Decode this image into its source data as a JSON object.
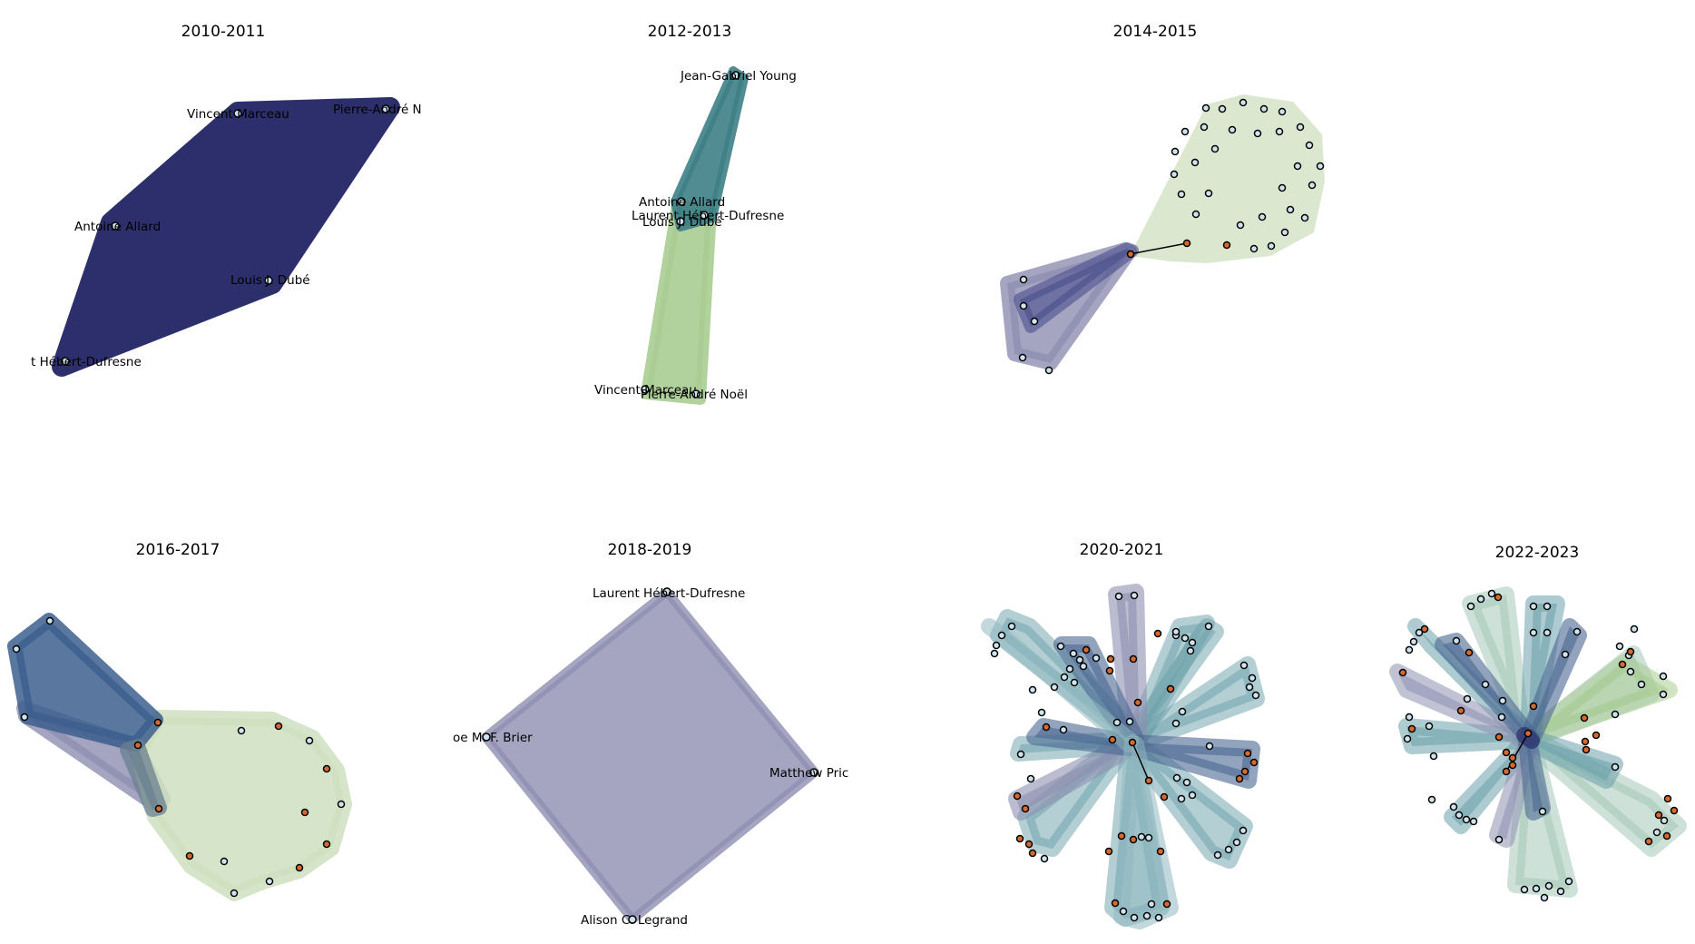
{
  "panels": [
    {
      "title": "2010-2011",
      "labels": [
        "Vincent Marceau",
        "Pierre-André N",
        "Antoine Allard",
        "Louis J. Dubé",
        "t Hébert-Dufresne"
      ]
    },
    {
      "title": "2012-2013",
      "labels": [
        "Jean-Gabriel Young",
        "Antoine Allard",
        "Laurent Hébert-Dufresne",
        "Louis J. Dubé",
        "Vincent Marceau",
        "Pierre-André Noël"
      ]
    },
    {
      "title": "2014-2015",
      "labels": []
    },
    {
      "title": "2016-2017",
      "labels": []
    },
    {
      "title": "2018-2019",
      "labels": [
        "Laurent Hébert-Dufresne",
        "oe M. F. Brier",
        "Matthew Pric",
        "Alison C. Legrand"
      ]
    },
    {
      "title": "2020-2021",
      "labels": []
    },
    {
      "title": "2022-2023",
      "labels": []
    }
  ],
  "colors": {
    "navy": "#2c2f6b",
    "teal": "#3d7f86",
    "light_green": "#a9cc92",
    "pale_green": "#cfe0bf",
    "slate_purple": "#8e8fb1",
    "steel_blue": "#4a6791",
    "cadet_blue": "#6aa0aa",
    "node_light": "#cfe3ec",
    "node_orange": "#d66a2c",
    "edge": "#000000"
  }
}
